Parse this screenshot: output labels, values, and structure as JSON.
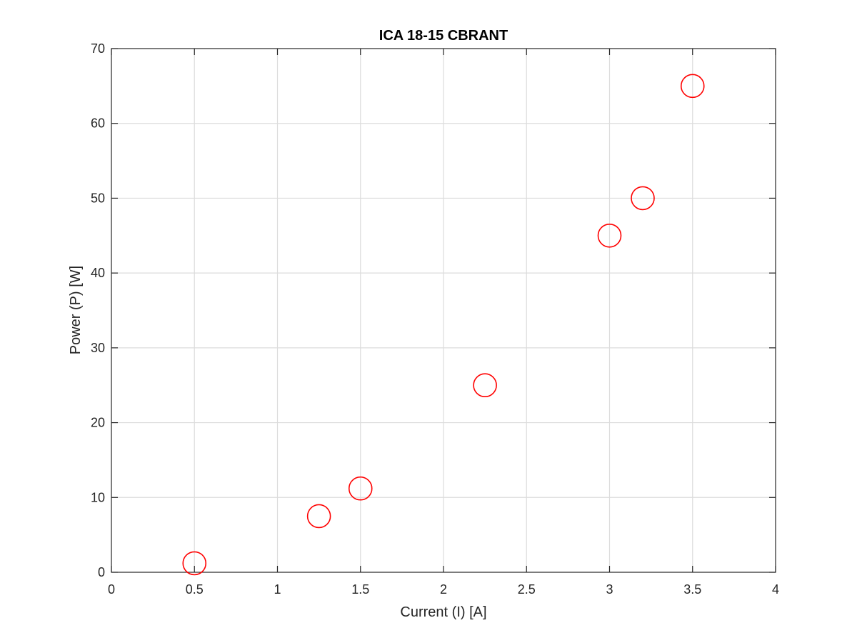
{
  "chart_data": {
    "type": "scatter",
    "title": "ICA 18-15 CBRANT",
    "xlabel": "Current (I) [A]",
    "ylabel": "Power (P) [W]",
    "xlim": [
      0,
      4
    ],
    "ylim": [
      0,
      70
    ],
    "xticks": [
      0,
      0.5,
      1,
      1.5,
      2,
      2.5,
      3,
      3.5,
      4
    ],
    "xtick_labels": [
      "0",
      "0.5",
      "1",
      "1.5",
      "2",
      "2.5",
      "3",
      "3.5",
      "4"
    ],
    "yticks": [
      0,
      10,
      20,
      30,
      40,
      50,
      60,
      70
    ],
    "ytick_labels": [
      "0",
      "10",
      "20",
      "30",
      "40",
      "50",
      "60",
      "70"
    ],
    "grid": true,
    "marker": "circle",
    "marker_color": "#ff0000",
    "series": [
      {
        "x": [
          0.5,
          1.25,
          1.5,
          2.25,
          3,
          3.2,
          3.5
        ],
        "y": [
          1.2,
          7.5,
          11.2,
          25,
          45,
          50,
          65
        ]
      }
    ]
  }
}
